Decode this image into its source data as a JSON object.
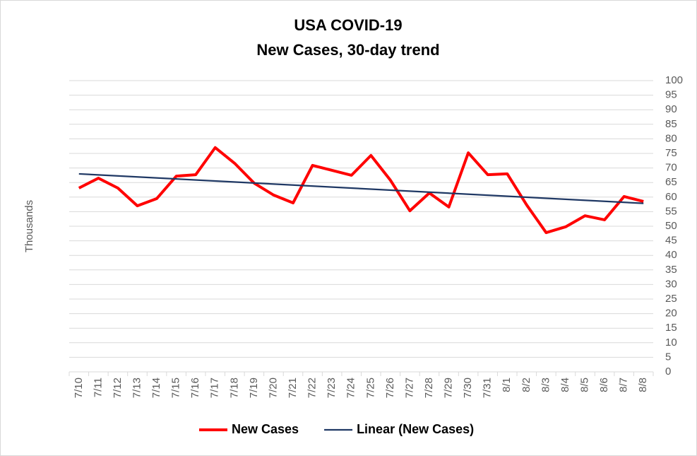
{
  "chart_data": {
    "type": "line",
    "title": "USA COVID-19",
    "subtitle": "New Cases, 30-day trend",
    "y_label": "Thousands",
    "categories": [
      "7/10",
      "7/11",
      "7/12",
      "7/13",
      "7/14",
      "7/15",
      "7/16",
      "7/17",
      "7/18",
      "7/19",
      "7/20",
      "7/21",
      "7/22",
      "7/23",
      "7/24",
      "7/25",
      "7/26",
      "7/27",
      "7/28",
      "7/29",
      "7/30",
      "7/31",
      "8/1",
      "8/2",
      "8/3",
      "8/4",
      "8/5",
      "8/6",
      "8/7",
      "8/8"
    ],
    "series": [
      {
        "name": "New Cases",
        "color": "#ff0000",
        "values": [
          63.1,
          66.5,
          63.1,
          57,
          59.5,
          67.2,
          67.7,
          77,
          71.6,
          64.8,
          60.7,
          58,
          70.9,
          69.2,
          67.5,
          74.3,
          65.8,
          55.3,
          61.4,
          56.6,
          75.2,
          67.7,
          68,
          57.3,
          47.8,
          49.8,
          53.6,
          52.2,
          60.2,
          58.5
        ]
      }
    ],
    "trendline": {
      "name": "Linear (New Cases)",
      "color": "#1f3864",
      "type": "linear",
      "series": 0
    },
    "ylim": [
      0,
      100
    ],
    "yticks": [
      0,
      5,
      10,
      15,
      20,
      25,
      30,
      35,
      40,
      45,
      50,
      55,
      60,
      65,
      70,
      75,
      80,
      85,
      90,
      95,
      100
    ],
    "y_axis_side": "right",
    "grid": true,
    "legend": "bottom"
  }
}
